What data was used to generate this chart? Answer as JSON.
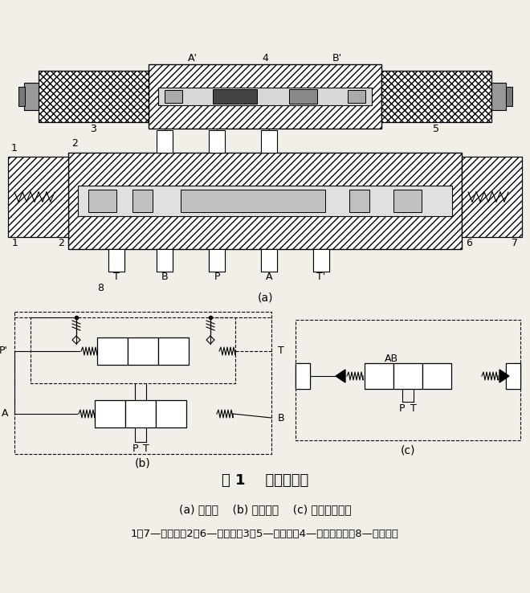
{
  "title": "图 1    电液换向阀",
  "subtitle": "(a) 结构图    (b) 职能符号    (c) 简化职能符号",
  "legend": "1、7—单向阀；2、6—节流阀；3、5—电磁铁；4—电磁阀阀芯；8—主阀阀芯",
  "bg_color": "#f2efe9",
  "lc": "#1a1a1a"
}
